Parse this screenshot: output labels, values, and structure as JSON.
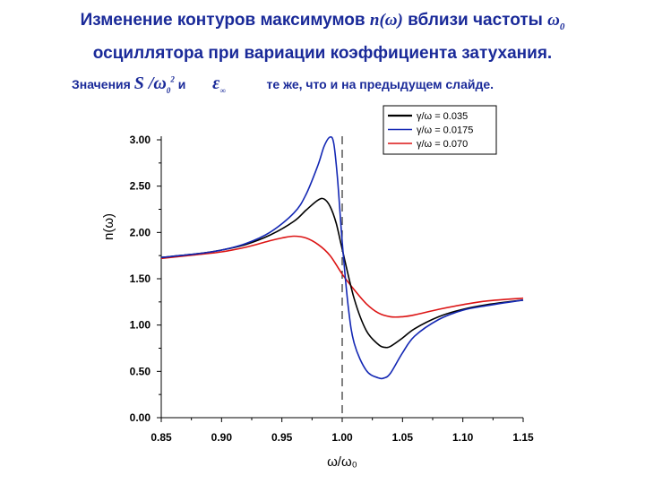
{
  "header": {
    "title_line1_pre": "Изменение контуров максимумов",
    "title_symbol_n": "n(ω)",
    "title_line1_mid": "вблизи частоты",
    "title_symbol_omega0": "ω",
    "title_symbol_omega0_sub": "0",
    "title_line2": "осциллятора при вариации коэффициента затухания."
  },
  "note": {
    "pre": "Значения",
    "symbol_s": "S /ω",
    "symbol_s_sub": "0",
    "symbol_s_sup": "2",
    "conj": "и",
    "symbol_eps": "ε",
    "symbol_eps_sub": "∞",
    "post": "те же, что и на предыдущем слайде."
  },
  "chart_data": {
    "type": "line",
    "xlabel": "ω/ω₀",
    "ylabel": "n(ω)",
    "xlim": [
      0.85,
      1.15
    ],
    "ylim": [
      0.0,
      3.0
    ],
    "x_ticks": [
      "0.85",
      "0.90",
      "0.95",
      "1.00",
      "1.05",
      "1.10",
      "1.15"
    ],
    "y_ticks": [
      "0.00",
      "0.50",
      "1.00",
      "1.50",
      "2.00",
      "2.50",
      "3.00"
    ],
    "reference_line_x": 1.0,
    "legend_position": "top-right",
    "series": [
      {
        "name": "γ/ω = 0.035",
        "color": "#000000",
        "x": [
          0.85,
          0.88,
          0.9,
          0.92,
          0.94,
          0.96,
          0.97,
          0.98,
          0.985,
          0.99,
          0.995,
          1.0,
          1.01,
          1.02,
          1.03,
          1.035,
          1.04,
          1.05,
          1.06,
          1.08,
          1.1,
          1.12,
          1.15
        ],
        "y": [
          1.73,
          1.77,
          1.81,
          1.87,
          1.97,
          2.12,
          2.24,
          2.35,
          2.36,
          2.28,
          2.1,
          1.82,
          1.28,
          0.94,
          0.79,
          0.76,
          0.77,
          0.86,
          0.96,
          1.09,
          1.17,
          1.22,
          1.27
        ]
      },
      {
        "name": "γ/ω = 0.0175",
        "color": "#1428b4",
        "x": [
          0.85,
          0.88,
          0.9,
          0.92,
          0.94,
          0.96,
          0.97,
          0.98,
          0.985,
          0.99,
          0.993,
          0.996,
          1.0,
          1.005,
          1.01,
          1.02,
          1.03,
          1.035,
          1.04,
          1.05,
          1.06,
          1.08,
          1.1,
          1.12,
          1.15
        ],
        "y": [
          1.73,
          1.77,
          1.81,
          1.88,
          2.0,
          2.21,
          2.41,
          2.73,
          2.93,
          3.03,
          2.96,
          2.6,
          1.9,
          1.2,
          0.8,
          0.51,
          0.43,
          0.43,
          0.48,
          0.7,
          0.88,
          1.06,
          1.16,
          1.21,
          1.27
        ]
      },
      {
        "name": "γ/ω = 0.070",
        "color": "#dc1414",
        "x": [
          0.85,
          0.88,
          0.9,
          0.92,
          0.94,
          0.95,
          0.96,
          0.97,
          0.98,
          0.99,
          1.0,
          1.01,
          1.02,
          1.03,
          1.04,
          1.05,
          1.06,
          1.08,
          1.1,
          1.12,
          1.15
        ],
        "y": [
          1.72,
          1.76,
          1.79,
          1.84,
          1.91,
          1.94,
          1.96,
          1.94,
          1.87,
          1.75,
          1.55,
          1.38,
          1.23,
          1.13,
          1.09,
          1.09,
          1.11,
          1.17,
          1.22,
          1.26,
          1.29
        ]
      }
    ]
  }
}
